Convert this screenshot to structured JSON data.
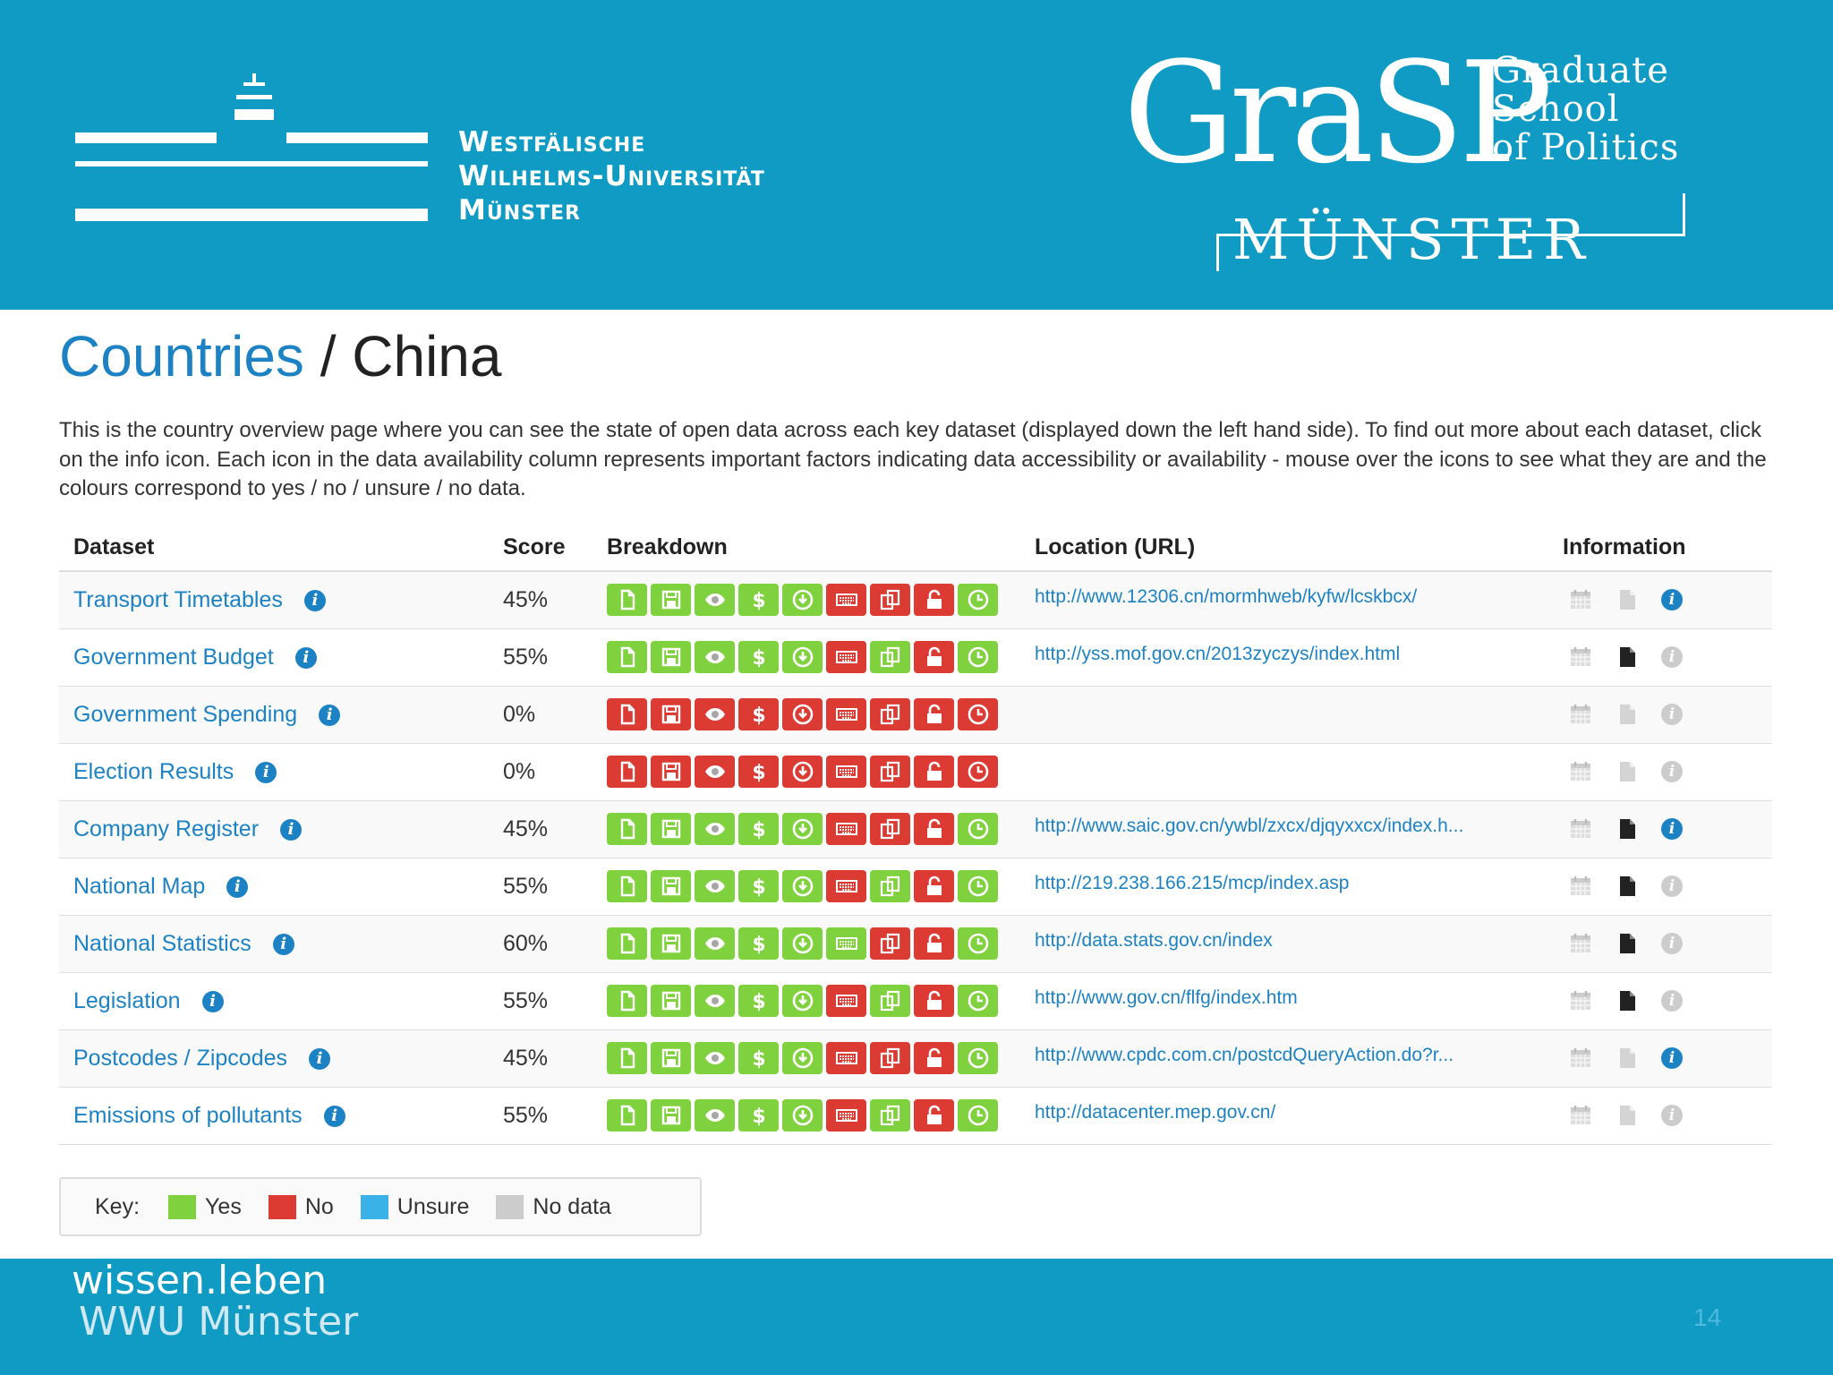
{
  "header": {
    "wwu_lines": [
      "Westfälische",
      "Wilhelms-Universität",
      "Münster"
    ],
    "grasp_big": "GraSP",
    "grasp_small": [
      "Graduate",
      "School",
      "of Politics"
    ],
    "grasp_city": "MÜNSTER"
  },
  "page": {
    "crumb": "Countries",
    "separator": " / ",
    "current": "China",
    "intro": "This is the country overview page where you can see the state of open data across each key dataset (displayed down the left hand side). To find out more about each dataset, click on the info icon. Each icon in the data availability column represents important factors indicating data accessibility or availability - mouse over the icons to see what they are and the colours correspond to yes / no / unsure / no data."
  },
  "table": {
    "headers": {
      "dataset": "Dataset",
      "score": "Score",
      "breakdown": "Breakdown",
      "location": "Location (URL)",
      "information": "Information"
    },
    "rows": [
      {
        "dataset": "Transport Timetables",
        "score": "45%",
        "breakdown": [
          "yes",
          "yes",
          "yes",
          "yes",
          "yes",
          "no",
          "no",
          "no",
          "yes"
        ],
        "url": "http://www.12306.cn/mormhweb/kyfw/lcskbcx/",
        "doc_dark": false,
        "info_on": true
      },
      {
        "dataset": "Government Budget",
        "score": "55%",
        "breakdown": [
          "yes",
          "yes",
          "yes",
          "yes",
          "yes",
          "no",
          "yes",
          "no",
          "yes"
        ],
        "url": "http://yss.mof.gov.cn/2013zyczys/index.html",
        "doc_dark": true,
        "info_on": false
      },
      {
        "dataset": "Government Spending",
        "score": "0%",
        "breakdown": [
          "no",
          "no",
          "no",
          "no",
          "no",
          "no",
          "no",
          "no",
          "no"
        ],
        "url": "",
        "doc_dark": false,
        "info_on": false
      },
      {
        "dataset": "Election Results",
        "score": "0%",
        "breakdown": [
          "no",
          "no",
          "no",
          "no",
          "no",
          "no",
          "no",
          "no",
          "no"
        ],
        "url": "",
        "doc_dark": false,
        "info_on": false
      },
      {
        "dataset": "Company Register",
        "score": "45%",
        "breakdown": [
          "yes",
          "yes",
          "yes",
          "yes",
          "yes",
          "no",
          "no",
          "no",
          "yes"
        ],
        "url": "http://www.saic.gov.cn/ywbl/zxcx/djqyxxcx/index.h...",
        "doc_dark": true,
        "info_on": true
      },
      {
        "dataset": "National Map",
        "score": "55%",
        "breakdown": [
          "yes",
          "yes",
          "yes",
          "yes",
          "yes",
          "no",
          "yes",
          "no",
          "yes"
        ],
        "url": "http://219.238.166.215/mcp/index.asp",
        "doc_dark": true,
        "info_on": false
      },
      {
        "dataset": "National Statistics",
        "score": "60%",
        "breakdown": [
          "yes",
          "yes",
          "yes",
          "yes",
          "yes",
          "yes",
          "no",
          "no",
          "yes"
        ],
        "url": "http://data.stats.gov.cn/index",
        "doc_dark": true,
        "info_on": false
      },
      {
        "dataset": "Legislation",
        "score": "55%",
        "breakdown": [
          "yes",
          "yes",
          "yes",
          "yes",
          "yes",
          "no",
          "yes",
          "no",
          "yes"
        ],
        "url": "http://www.gov.cn/flfg/index.htm",
        "doc_dark": true,
        "info_on": false
      },
      {
        "dataset": "Postcodes / Zipcodes",
        "score": "45%",
        "breakdown": [
          "yes",
          "yes",
          "yes",
          "yes",
          "yes",
          "no",
          "no",
          "no",
          "yes"
        ],
        "url": "http://www.cpdc.com.cn/postcdQueryAction.do?r...",
        "doc_dark": false,
        "info_on": true
      },
      {
        "dataset": "Emissions of pollutants",
        "score": "55%",
        "breakdown": [
          "yes",
          "yes",
          "yes",
          "yes",
          "yes",
          "no",
          "yes",
          "no",
          "yes"
        ],
        "url": "http://datacenter.mep.gov.cn/",
        "doc_dark": false,
        "info_on": false
      }
    ],
    "breakdown_icons": [
      "file-icon",
      "save-icon",
      "eye-icon",
      "dollar-icon",
      "download-icon",
      "keyboard-icon",
      "copy-icon",
      "unlock-icon",
      "clock-icon"
    ]
  },
  "key": {
    "label": "Key:",
    "items": [
      {
        "label": "Yes",
        "color": "#80d13e"
      },
      {
        "label": "No",
        "color": "#dc3b34"
      },
      {
        "label": "Unsure",
        "color": "#3ab2e8"
      },
      {
        "label": "No data",
        "color": "#cccccc"
      }
    ]
  },
  "footer": {
    "line1": "wissen.leben",
    "line2": "WWU Münster",
    "page_number": "14"
  },
  "colors": {
    "banner": "#0f9bc4",
    "link": "#1d82c4",
    "yes": "#80d13e",
    "no": "#dc3b34"
  }
}
